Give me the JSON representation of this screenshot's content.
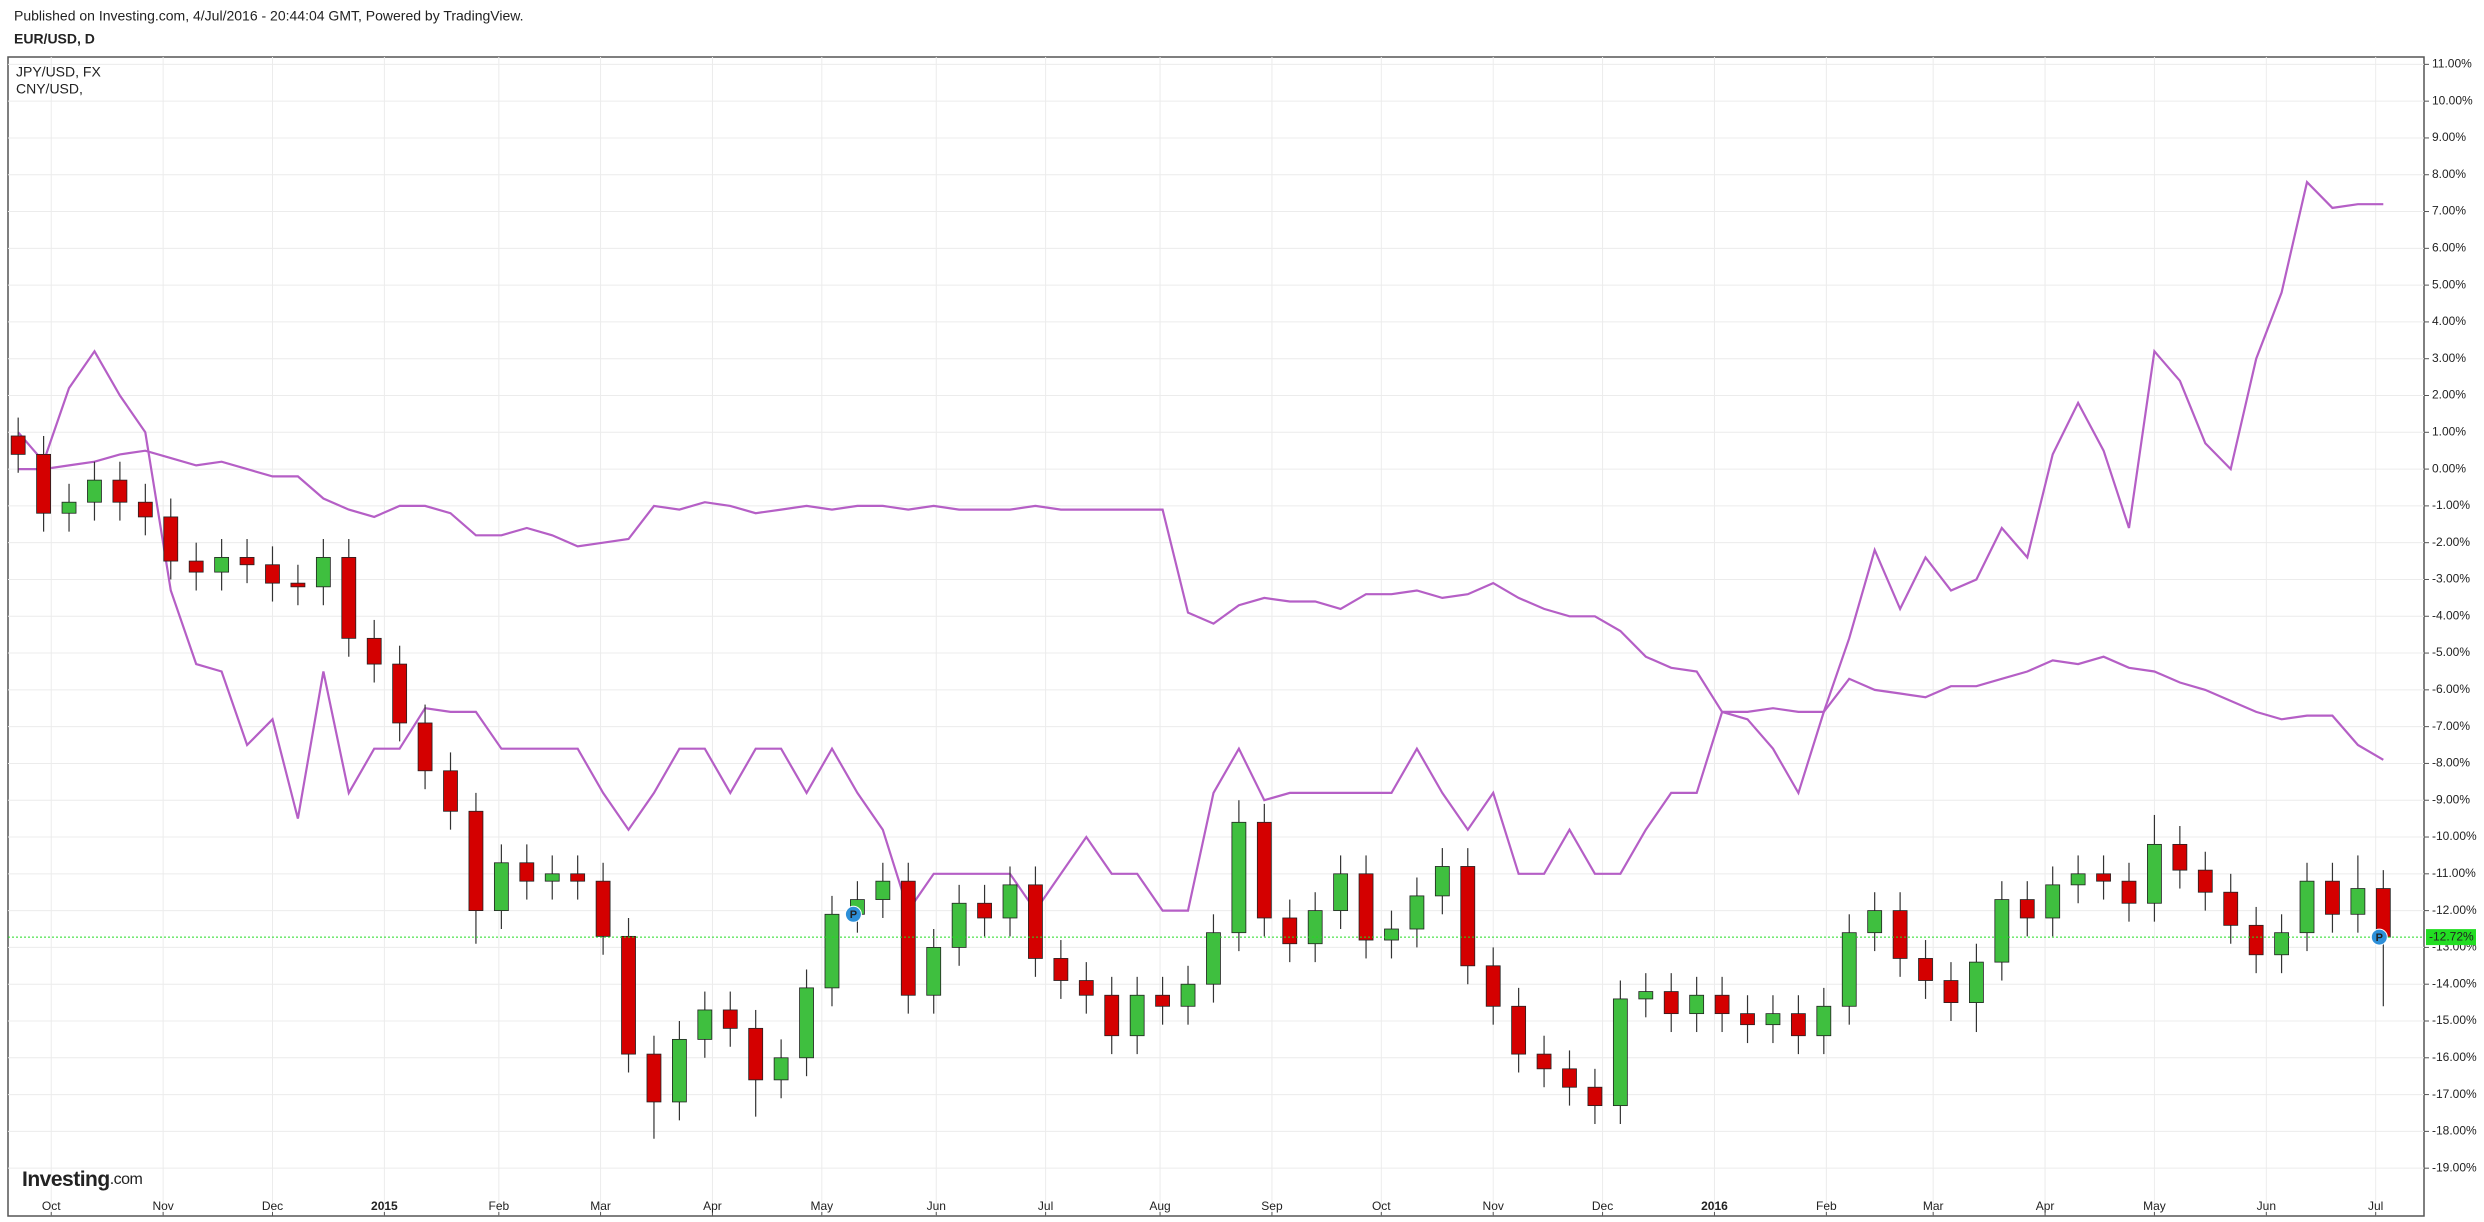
{
  "chart_data": {
    "type": "candlestick",
    "header": "Published on Investing.com, 4/Jul/2016 - 20:44:04 GMT, Powered by TradingView.",
    "title": "EUR/USD, D",
    "brand": "Investing",
    "brand_suffix": ".com",
    "grid": true,
    "candles": {
      "up_color": "#3fbf3f",
      "down_color": "#d40000",
      "open": [
        0.9,
        0.4,
        -1.2,
        -0.9,
        -0.3,
        -0.9,
        -1.3,
        -2.5,
        -2.8,
        -2.4,
        -2.6,
        -3.1,
        -3.2,
        -2.4,
        -4.6,
        -5.3,
        -6.9,
        -8.2,
        -9.3,
        -12.0,
        -10.7,
        -11.2,
        -11.0,
        -11.2,
        -12.7,
        -15.9,
        -17.2,
        -15.5,
        -14.7,
        -15.2,
        -16.6,
        -16.0,
        -14.1,
        -12.1,
        -11.7,
        -11.2,
        -14.3,
        -13.0,
        -11.8,
        -12.2,
        -11.3,
        -13.3,
        -13.9,
        -14.3,
        -15.4,
        -14.3,
        -14.6,
        -14.0,
        -12.6,
        -9.6,
        -12.2,
        -12.9,
        -12.0,
        -11.0,
        -12.8,
        -12.5,
        -11.6,
        -10.8,
        -13.5,
        -14.6,
        -15.9,
        -16.3,
        -16.8,
        -17.3,
        -14.4,
        -14.2,
        -14.8,
        -14.3,
        -14.8,
        -15.1,
        -14.8,
        -15.4,
        -14.6,
        -12.6,
        -12.0,
        -13.3,
        -13.9,
        -14.5,
        -13.4,
        -11.7,
        -12.2,
        -11.3,
        -11.0,
        -11.2,
        -11.8,
        -10.2,
        -10.9,
        -11.5,
        -12.4,
        -13.2,
        -12.6,
        -11.2,
        -12.1,
        -11.4
      ],
      "high": [
        1.4,
        0.9,
        -0.4,
        0.2,
        0.2,
        -0.4,
        -0.8,
        -2.0,
        -1.9,
        -1.9,
        -2.1,
        -2.6,
        -1.9,
        -1.9,
        -4.1,
        -4.8,
        -6.4,
        -7.7,
        -8.8,
        -10.2,
        -10.2,
        -10.5,
        -10.5,
        -10.7,
        -12.2,
        -15.4,
        -15.0,
        -14.2,
        -14.2,
        -14.7,
        -15.5,
        -13.6,
        -11.6,
        -11.2,
        -10.7,
        -10.7,
        -12.5,
        -11.3,
        -11.3,
        -10.8,
        -10.8,
        -12.8,
        -13.4,
        -13.8,
        -13.8,
        -13.8,
        -13.5,
        -12.1,
        -9.0,
        -9.1,
        -11.7,
        -11.5,
        -10.5,
        -10.5,
        -12.0,
        -11.1,
        -10.3,
        -10.3,
        -13.0,
        -14.1,
        -15.4,
        -15.8,
        -16.3,
        -13.9,
        -13.7,
        -13.7,
        -13.8,
        -13.8,
        -14.3,
        -14.3,
        -14.3,
        -14.1,
        -12.1,
        -11.5,
        -11.5,
        -12.8,
        -13.4,
        -12.9,
        -11.2,
        -11.2,
        -10.8,
        -10.5,
        -10.5,
        -10.7,
        -9.4,
        -9.7,
        -10.4,
        -11.0,
        -11.9,
        -12.1,
        -10.7,
        -10.7,
        -10.5,
        -10.9
      ],
      "low": [
        -0.1,
        -1.7,
        -1.7,
        -1.4,
        -1.4,
        -1.8,
        -3.0,
        -3.3,
        -3.3,
        -3.1,
        -3.6,
        -3.7,
        -3.7,
        -5.1,
        -5.8,
        -7.4,
        -8.7,
        -9.8,
        -12.9,
        -12.5,
        -11.7,
        -11.7,
        -11.7,
        -13.2,
        -16.4,
        -18.2,
        -17.7,
        -16.0,
        -15.7,
        -17.6,
        -17.1,
        -16.5,
        -14.6,
        -12.6,
        -12.2,
        -14.8,
        -14.8,
        -13.5,
        -12.7,
        -12.7,
        -13.8,
        -14.4,
        -14.8,
        -15.9,
        -15.9,
        -15.1,
        -15.1,
        -14.5,
        -13.1,
        -12.7,
        -13.4,
        -13.4,
        -12.5,
        -13.3,
        -13.3,
        -13.0,
        -12.1,
        -14.0,
        -15.1,
        -16.4,
        -16.8,
        -17.3,
        -17.8,
        -17.8,
        -14.9,
        -15.3,
        -15.3,
        -15.3,
        -15.6,
        -15.6,
        -15.9,
        -15.9,
        -15.1,
        -13.1,
        -13.8,
        -14.4,
        -15.0,
        -15.3,
        -13.9,
        -12.7,
        -12.7,
        -11.8,
        -11.7,
        -12.3,
        -12.3,
        -11.4,
        -12.0,
        -12.9,
        -13.7,
        -13.7,
        -13.1,
        -12.6,
        -12.6,
        -14.6
      ],
      "close": [
        0.4,
        -1.2,
        -0.9,
        -0.3,
        -0.9,
        -1.3,
        -2.5,
        -2.8,
        -2.4,
        -2.6,
        -3.1,
        -3.2,
        -2.4,
        -4.6,
        -5.3,
        -6.9,
        -8.2,
        -9.3,
        -12.0,
        -10.7,
        -11.2,
        -11.0,
        -11.2,
        -12.7,
        -15.9,
        -17.2,
        -15.5,
        -14.7,
        -15.2,
        -16.6,
        -16.0,
        -14.1,
        -12.1,
        -11.7,
        -11.2,
        -14.3,
        -13.0,
        -11.8,
        -12.2,
        -11.3,
        -13.3,
        -13.9,
        -14.3,
        -15.4,
        -14.3,
        -14.6,
        -14.0,
        -12.6,
        -9.6,
        -12.2,
        -12.9,
        -12.0,
        -11.0,
        -12.8,
        -12.5,
        -11.6,
        -10.8,
        -13.5,
        -14.6,
        -15.9,
        -16.3,
        -16.8,
        -17.3,
        -14.4,
        -14.2,
        -14.8,
        -14.3,
        -14.8,
        -15.1,
        -14.8,
        -15.4,
        -14.6,
        -12.6,
        -12.0,
        -13.3,
        -13.9,
        -14.5,
        -13.4,
        -11.7,
        -12.2,
        -11.3,
        -11.0,
        -11.2,
        -11.8,
        -10.2,
        -10.9,
        -11.5,
        -12.4,
        -13.2,
        -12.6,
        -11.2,
        -12.1,
        -11.4,
        -12.72
      ]
    },
    "series": [
      {
        "name": "JPY/USD, FX",
        "color": "#b55fc6",
        "values": [
          1.0,
          0.2,
          2.2,
          3.2,
          2.0,
          1.0,
          -3.3,
          -5.3,
          -5.5,
          -7.5,
          -6.8,
          -9.5,
          -5.5,
          -8.8,
          -7.6,
          -7.6,
          -6.5,
          -6.6,
          -6.6,
          -7.6,
          -7.6,
          -7.6,
          -7.6,
          -8.8,
          -9.8,
          -8.8,
          -7.6,
          -7.6,
          -8.8,
          -7.6,
          -7.6,
          -8.8,
          -7.6,
          -8.8,
          -9.8,
          -12.0,
          -11.0,
          -11.0,
          -11.0,
          -11.0,
          -12.0,
          -11.0,
          -10.0,
          -11.0,
          -11.0,
          -12.0,
          -12.0,
          -8.8,
          -7.6,
          -9.0,
          -8.8,
          -8.8,
          -8.8,
          -8.8,
          -8.8,
          -7.6,
          -8.8,
          -9.8,
          -8.8,
          -11.0,
          -11.0,
          -9.8,
          -11.0,
          -11.0,
          -9.8,
          -8.8,
          -8.8,
          -6.6,
          -6.8,
          -7.6,
          -8.8,
          -6.6,
          -4.6,
          -2.2,
          -3.8,
          -2.4,
          -3.3,
          -3.0,
          -1.6,
          -2.4,
          0.4,
          1.8,
          0.5,
          -1.6,
          3.2,
          2.4,
          0.7,
          0.0,
          3.0,
          4.8,
          7.8,
          7.1,
          7.2,
          7.2
        ]
      },
      {
        "name": "CNY/USD,",
        "color": "#b55fc6",
        "values": [
          0.0,
          0.0,
          0.1,
          0.2,
          0.4,
          0.5,
          0.3,
          0.1,
          0.2,
          0.0,
          -0.2,
          -0.2,
          -0.8,
          -1.1,
          -1.3,
          -1.0,
          -1.0,
          -1.2,
          -1.8,
          -1.8,
          -1.6,
          -1.8,
          -2.1,
          -2.0,
          -1.9,
          -1.0,
          -1.1,
          -0.9,
          -1.0,
          -1.2,
          -1.1,
          -1.0,
          -1.1,
          -1.0,
          -1.0,
          -1.1,
          -1.0,
          -1.1,
          -1.1,
          -1.1,
          -1.0,
          -1.1,
          -1.1,
          -1.1,
          -1.1,
          -1.1,
          -3.9,
          -4.2,
          -3.7,
          -3.5,
          -3.6,
          -3.6,
          -3.8,
          -3.4,
          -3.4,
          -3.3,
          -3.5,
          -3.4,
          -3.1,
          -3.5,
          -3.8,
          -4.0,
          -4.0,
          -4.4,
          -5.1,
          -5.4,
          -5.5,
          -6.6,
          -6.6,
          -6.5,
          -6.6,
          -6.6,
          -5.7,
          -6.0,
          -6.1,
          -6.2,
          -5.9,
          -5.9,
          -5.7,
          -5.5,
          -5.2,
          -5.3,
          -5.1,
          -5.4,
          -5.5,
          -5.8,
          -6.0,
          -6.3,
          -6.6,
          -6.8,
          -6.7,
          -6.7,
          -7.5,
          -7.9
        ]
      }
    ],
    "last_price": {
      "value": -12.72,
      "label": "-12.72%",
      "color": "#22dd22"
    },
    "markers": [
      {
        "label": "P"
      },
      {
        "label": "P"
      }
    ],
    "xlim": [
      -0.4,
      94.6
    ],
    "xticks": [
      {
        "value": 1.3,
        "label": "Oct"
      },
      {
        "value": 5.7,
        "label": "Nov"
      },
      {
        "value": 10.0,
        "label": "Dec"
      },
      {
        "value": 14.4,
        "label": "2015"
      },
      {
        "value": 18.9,
        "label": "Feb"
      },
      {
        "value": 22.9,
        "label": "Mar"
      },
      {
        "value": 27.3,
        "label": "Apr"
      },
      {
        "value": 31.6,
        "label": "May"
      },
      {
        "value": 36.1,
        "label": "Jun"
      },
      {
        "value": 40.4,
        "label": "Jul"
      },
      {
        "value": 44.9,
        "label": "Aug"
      },
      {
        "value": 49.3,
        "label": "Sep"
      },
      {
        "value": 53.6,
        "label": "Oct"
      },
      {
        "value": 58.0,
        "label": "Nov"
      },
      {
        "value": 62.3,
        "label": "Dec"
      },
      {
        "value": 66.7,
        "label": "2016"
      },
      {
        "value": 71.1,
        "label": "Feb"
      },
      {
        "value": 75.3,
        "label": "Mar"
      },
      {
        "value": 79.7,
        "label": "Apr"
      },
      {
        "value": 84.0,
        "label": "May"
      },
      {
        "value": 88.4,
        "label": "Jun"
      },
      {
        "value": 92.7,
        "label": "Jul"
      }
    ],
    "ylim": [
      -20.3,
      11.2
    ],
    "yticks": [
      {
        "value": 11,
        "label": "11.00%"
      },
      {
        "value": 10,
        "label": "10.00%"
      },
      {
        "value": 9,
        "label": "9.00%"
      },
      {
        "value": 8,
        "label": "8.00%"
      },
      {
        "value": 7,
        "label": "7.00%"
      },
      {
        "value": 6,
        "label": "6.00%"
      },
      {
        "value": 5,
        "label": "5.00%"
      },
      {
        "value": 4,
        "label": "4.00%"
      },
      {
        "value": 3,
        "label": "3.00%"
      },
      {
        "value": 2,
        "label": "2.00%"
      },
      {
        "value": 1,
        "label": "1.00%"
      },
      {
        "value": 0,
        "label": "0.00%"
      },
      {
        "value": -1,
        "label": "-1.00%"
      },
      {
        "value": -2,
        "label": "-2.00%"
      },
      {
        "value": -3,
        "label": "-3.00%"
      },
      {
        "value": -4,
        "label": "-4.00%"
      },
      {
        "value": -5,
        "label": "-5.00%"
      },
      {
        "value": -6,
        "label": "-6.00%"
      },
      {
        "value": -7,
        "label": "-7.00%"
      },
      {
        "value": -8,
        "label": "-8.00%"
      },
      {
        "value": -9,
        "label": "-9.00%"
      },
      {
        "value": -10,
        "label": "-10.00%"
      },
      {
        "value": -11,
        "label": "-11.00%"
      },
      {
        "value": -12,
        "label": "-12.00%"
      },
      {
        "value": -13,
        "label": "-13.00%"
      },
      {
        "value": -14,
        "label": "-14.00%"
      },
      {
        "value": -15,
        "label": "-15.00%"
      },
      {
        "value": -16,
        "label": "-16.00%"
      },
      {
        "value": -17,
        "label": "-17.00%"
      },
      {
        "value": -18,
        "label": "-18.00%"
      },
      {
        "value": -19,
        "label": "-19.00%"
      }
    ]
  }
}
